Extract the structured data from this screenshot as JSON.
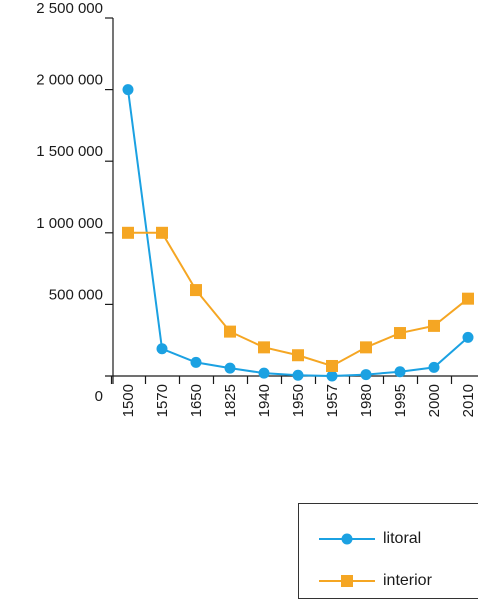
{
  "chart_data": {
    "type": "line",
    "categories": [
      "1500",
      "1570",
      "1650",
      "1825",
      "1940",
      "1950",
      "1957",
      "1980",
      "1995",
      "2000",
      "2010"
    ],
    "series": [
      {
        "name": "litoral",
        "color": "#1ba1e2",
        "marker": "circle",
        "values": [
          2000000,
          190000,
          95000,
          55000,
          20000,
          5000,
          0,
          10000,
          30000,
          60000,
          270000
        ]
      },
      {
        "name": "interior",
        "color": "#f5a623",
        "marker": "square",
        "values": [
          1000000,
          1000000,
          600000,
          310000,
          200000,
          145000,
          70000,
          200000,
          300000,
          350000,
          540000
        ]
      }
    ],
    "y_ticks": [
      "0",
      "500 000",
      "1 000 000",
      "1 500 000",
      "2 000 000",
      "2 500 000"
    ],
    "y_tick_values": [
      0,
      500000,
      1000000,
      1500000,
      2000000,
      2500000
    ],
    "ylim": [
      0,
      2500000
    ],
    "grid": false,
    "legend_position": "bottom-right"
  }
}
